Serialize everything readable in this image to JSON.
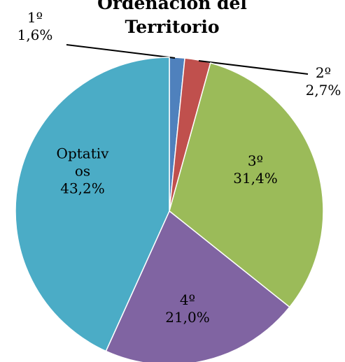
{
  "chart_data": {
    "type": "pie",
    "title": "Ordenación del Territorio",
    "categories": [
      "1º",
      "2º",
      "3º",
      "4º",
      "Optativos"
    ],
    "values": [
      1.6,
      2.7,
      31.4,
      21.0,
      43.2
    ],
    "value_labels": [
      "1,6%",
      "2,7%",
      "31,4%",
      "21,0%",
      "43,2%"
    ],
    "colors": [
      "#4f81bd",
      "#c0504d",
      "#9bbb59",
      "#8064a2",
      "#4bacc6"
    ]
  }
}
